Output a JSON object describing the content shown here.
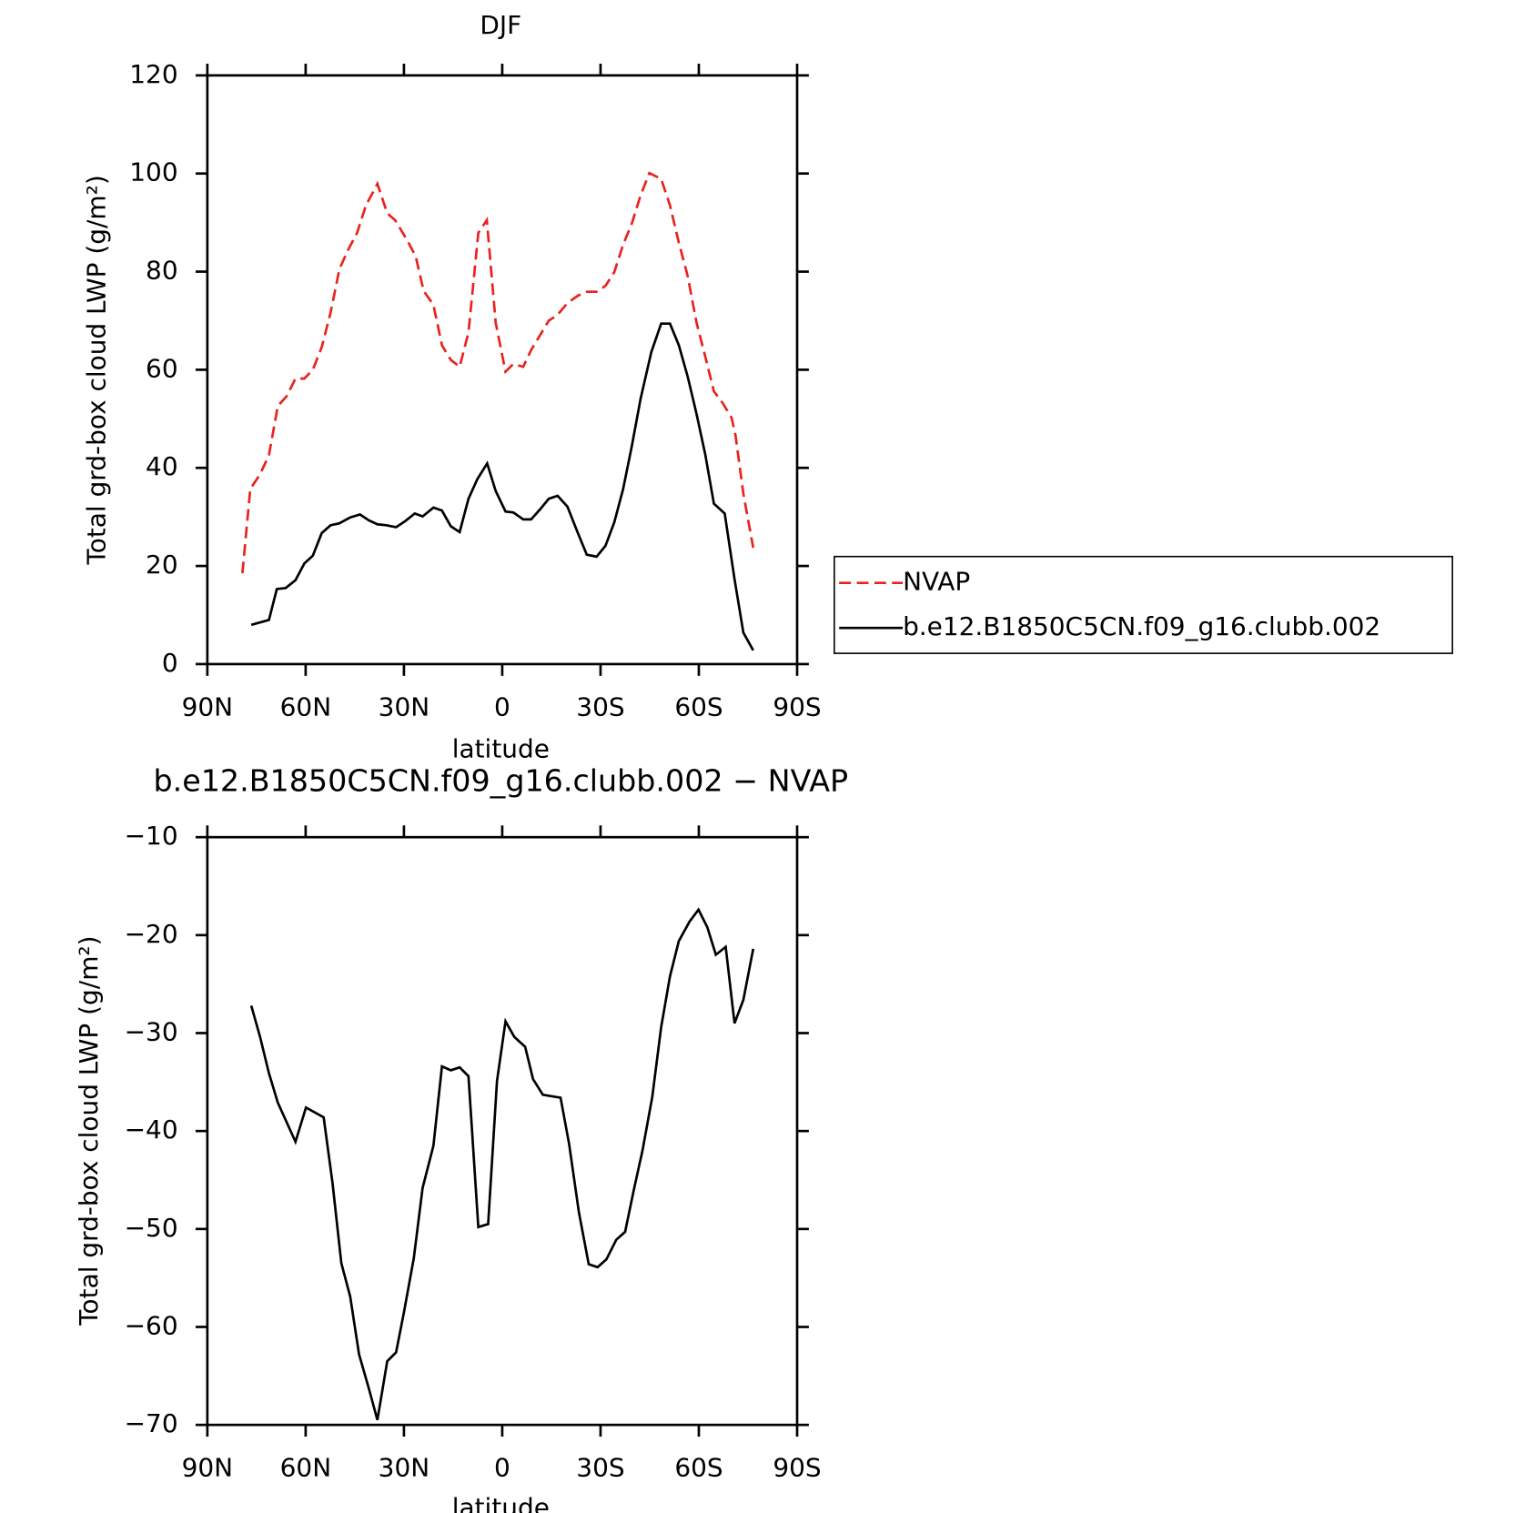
{
  "chart_data": [
    {
      "type": "line",
      "title": "DJF",
      "xlabel": "latitude",
      "ylabel": "Total grd-box cloud LWP (g/m²)",
      "xlim": [
        90,
        -90
      ],
      "xticks": [
        {
          "value": 90,
          "label": "90N"
        },
        {
          "value": 60,
          "label": "60N"
        },
        {
          "value": 30,
          "label": "30N"
        },
        0,
        {
          "value": -30,
          "label": "30S"
        },
        {
          "value": -60,
          "label": "60S"
        },
        {
          "value": -90,
          "label": "90S"
        }
      ],
      "ylim": [
        0,
        120
      ],
      "yticks": [
        0,
        20,
        40,
        60,
        80,
        100,
        120
      ],
      "legend": "right",
      "series": [
        {
          "name": "NVAP",
          "color": "#e8231f",
          "style": "dashed",
          "x": [
            79.3,
            76.9,
            73.9,
            71.2,
            68.5,
            65.8,
            63.1,
            60.4,
            57.8,
            55.1,
            52.4,
            49.7,
            47.0,
            44.3,
            41.6,
            38.1,
            35.1,
            32.7,
            29.1,
            26.4,
            24.0,
            21.0,
            18.4,
            15.7,
            13.0,
            10.3,
            7.3,
            4.7,
            2.0,
            -1.0,
            -3.4,
            -6.4,
            -8.8,
            -11.5,
            -14.2,
            -16.9,
            -19.9,
            -23.1,
            -25.8,
            -28.8,
            -31.5,
            -34.2,
            -36.9,
            -39.6,
            -42.2,
            -44.9,
            -48.5,
            -51.2,
            -53.9,
            -56.6,
            -59.3,
            -62.0,
            -64.6,
            -67.3,
            -70.0,
            -71.2,
            -73.6,
            -76.6
          ],
          "values": [
            18.5,
            35.7,
            38.7,
            42.6,
            52.6,
            54.6,
            58.2,
            58.2,
            60.0,
            64.6,
            71.6,
            80.5,
            84.5,
            87.9,
            93.5,
            97.9,
            91.9,
            90.5,
            86.5,
            83.1,
            76.1,
            73.2,
            65.0,
            62.0,
            60.6,
            67.6,
            87.9,
            90.5,
            69.6,
            59.6,
            61.2,
            60.6,
            64.0,
            67.0,
            70.0,
            71.2,
            73.6,
            75.1,
            75.9,
            75.9,
            77.1,
            79.9,
            85.5,
            89.9,
            95.5,
            100.1,
            98.9,
            93.5,
            85.9,
            79.1,
            69.6,
            62.6,
            55.6,
            53.2,
            50.2,
            46.6,
            34.7,
            23.7
          ]
        },
        {
          "name": "b.e12.B1850C5CN.f09_g16.clubb.002",
          "color": "#000000",
          "style": "solid",
          "x": [
            76.6,
            71.2,
            68.8,
            66.1,
            63.1,
            60.4,
            57.8,
            55.1,
            52.4,
            49.7,
            46.4,
            43.4,
            40.7,
            38.1,
            35.4,
            32.4,
            29.7,
            26.7,
            24.3,
            21.0,
            18.4,
            15.7,
            13.0,
            10.3,
            7.6,
            4.6,
            2.0,
            -1.0,
            -3.4,
            -6.4,
            -8.8,
            -11.5,
            -14.2,
            -16.9,
            -19.9,
            -23.1,
            -25.8,
            -28.8,
            -31.5,
            -34.2,
            -36.9,
            -39.6,
            -42.2,
            -45.5,
            -48.5,
            -51.2,
            -53.9,
            -56.6,
            -59.3,
            -62.0,
            -64.6,
            -67.9,
            -70.9,
            -73.6,
            -76.6
          ],
          "values": [
            8.0,
            9.0,
            15.3,
            15.5,
            17.1,
            20.5,
            22.1,
            26.7,
            28.3,
            28.7,
            29.9,
            30.5,
            29.3,
            28.5,
            28.3,
            27.9,
            29.1,
            30.7,
            30.1,
            31.9,
            31.3,
            28.1,
            26.9,
            33.7,
            37.7,
            40.9,
            35.3,
            31.1,
            30.9,
            29.5,
            29.5,
            31.5,
            33.7,
            34.3,
            32.1,
            26.7,
            22.3,
            21.9,
            24.1,
            28.9,
            35.7,
            44.6,
            54.0,
            63.6,
            69.4,
            69.4,
            65.0,
            58.6,
            51.0,
            42.6,
            32.7,
            30.7,
            17.3,
            6.4,
            2.8
          ]
        }
      ]
    },
    {
      "type": "line",
      "title": "b.e12.B1850C5CN.f09_g16.clubb.002 − NVAP",
      "xlabel": "latitude",
      "ylabel": "Total grd-box cloud LWP (g/m²)",
      "xlim": [
        90,
        -90
      ],
      "xticks": [
        {
          "value": 90,
          "label": "90N"
        },
        {
          "value": 60,
          "label": "60N"
        },
        {
          "value": 30,
          "label": "30N"
        },
        0,
        {
          "value": -30,
          "label": "30S"
        },
        {
          "value": -60,
          "label": "60S"
        },
        {
          "value": -90,
          "label": "90S"
        }
      ],
      "ylim": [
        -70,
        -10
      ],
      "yticks": [
        {
          "value": -70,
          "label": "−70"
        },
        {
          "value": -60,
          "label": "−60"
        },
        {
          "value": -50,
          "label": "−50"
        },
        {
          "value": -40,
          "label": "−40"
        },
        {
          "value": -30,
          "label": "−30"
        },
        {
          "value": -20,
          "label": "−20"
        },
        {
          "value": -10,
          "label": "−10"
        }
      ],
      "series": [
        {
          "color": "#000000",
          "style": "solid",
          "x": [
            76.6,
            73.9,
            71.2,
            68.5,
            63.1,
            59.9,
            54.5,
            51.8,
            49.1,
            46.4,
            43.7,
            40.7,
            38.1,
            35.1,
            32.4,
            30.0,
            27.0,
            24.3,
            21.0,
            18.4,
            15.7,
            13.0,
            10.3,
            7.3,
            4.3,
            1.6,
            -1.0,
            -3.7,
            -7.0,
            -9.4,
            -12.4,
            -17.8,
            -20.4,
            -23.4,
            -26.4,
            -29.1,
            -31.8,
            -34.8,
            -37.5,
            -40.1,
            -42.8,
            -45.8,
            -48.5,
            -51.2,
            -53.9,
            -57.2,
            -59.9,
            -62.6,
            -65.2,
            -68.2,
            -70.9,
            -73.6,
            -76.6
          ],
          "values": [
            -27.2,
            -30.4,
            -34.1,
            -37.1,
            -41.1,
            -37.6,
            -38.6,
            -45.3,
            -53.5,
            -56.9,
            -62.8,
            -66.3,
            -69.5,
            -63.5,
            -62.6,
            -58.5,
            -53.0,
            -45.8,
            -41.5,
            -33.4,
            -33.8,
            -33.5,
            -34.4,
            -49.8,
            -49.5,
            -34.9,
            -28.8,
            -30.4,
            -31.4,
            -34.7,
            -36.3,
            -36.6,
            -41.3,
            -48.3,
            -53.6,
            -53.9,
            -53.1,
            -51.1,
            -50.3,
            -46.1,
            -42.0,
            -36.5,
            -29.4,
            -24.2,
            -20.6,
            -18.6,
            -17.4,
            -19.2,
            -22.0,
            -21.2,
            -29.0,
            -26.6,
            -21.4
          ]
        }
      ]
    }
  ]
}
